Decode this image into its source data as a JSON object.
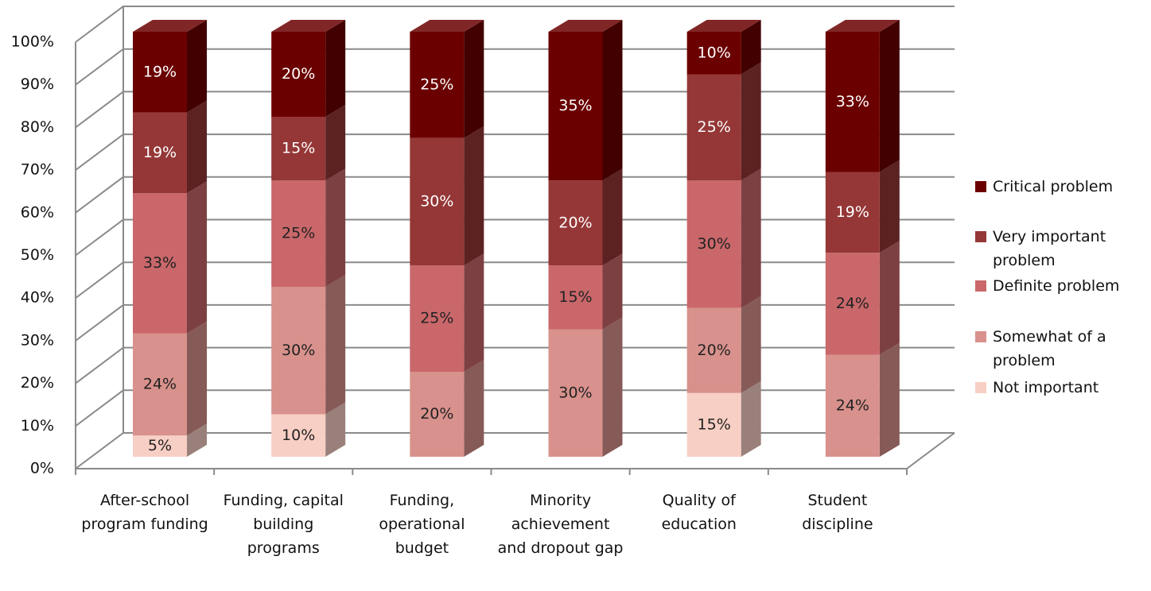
{
  "chart_data": {
    "type": "stacked-bar-3d",
    "categories": [
      "After-school program funding",
      "Funding, capital building programs",
      "Funding, operational budget",
      "Minority achievement and dropout gap",
      "Quality of education",
      "Student discipline"
    ],
    "series": [
      {
        "name": "Not important",
        "color": "#f8cfc4",
        "label_color": "#222222",
        "values": [
          5,
          10,
          null,
          null,
          15,
          null
        ],
        "value_labels": [
          "5%",
          "10%",
          null,
          null,
          "15%",
          null
        ]
      },
      {
        "name": "Somewhat of a problem",
        "color": "#d8918c",
        "label_color": "#222222",
        "values": [
          24,
          30,
          20,
          30,
          20,
          24
        ],
        "value_labels": [
          "24%",
          "30%",
          "20%",
          "30%",
          "20%",
          "24%"
        ]
      },
      {
        "name": "Definite problem",
        "color": "#c9676a",
        "label_color": "#222222",
        "values": [
          33,
          25,
          25,
          15,
          30,
          24
        ],
        "value_labels": [
          "33%",
          "25%",
          "25%",
          "15%",
          "30%",
          "24%"
        ]
      },
      {
        "name": "Very important problem",
        "color": "#953737",
        "label_color": "#ffffff",
        "values": [
          19,
          15,
          30,
          20,
          25,
          19
        ],
        "value_labels": [
          "19%",
          "15%",
          "30%",
          "20%",
          "25%",
          "19%"
        ]
      },
      {
        "name": "Critical problem",
        "color": "#6b0000",
        "label_color": "#ffffff",
        "values": [
          19,
          20,
          25,
          35,
          10,
          33
        ],
        "value_labels": [
          "19%",
          "20%",
          "25%",
          "35%",
          "10%",
          "33%"
        ]
      }
    ],
    "ylim": [
      0,
      100
    ],
    "yticks": [
      {
        "value": 0,
        "label": "0%"
      },
      {
        "value": 10,
        "label": "10%"
      },
      {
        "value": 20,
        "label": "20%"
      },
      {
        "value": 30,
        "label": "30%"
      },
      {
        "value": 40,
        "label": "40%"
      },
      {
        "value": 50,
        "label": "50%"
      },
      {
        "value": 60,
        "label": "60%"
      },
      {
        "value": 70,
        "label": "70%"
      },
      {
        "value": 80,
        "label": "80%"
      },
      {
        "value": 90,
        "label": "90%"
      },
      {
        "value": 100,
        "label": "100%"
      }
    ],
    "grid": true,
    "legend": "right"
  }
}
